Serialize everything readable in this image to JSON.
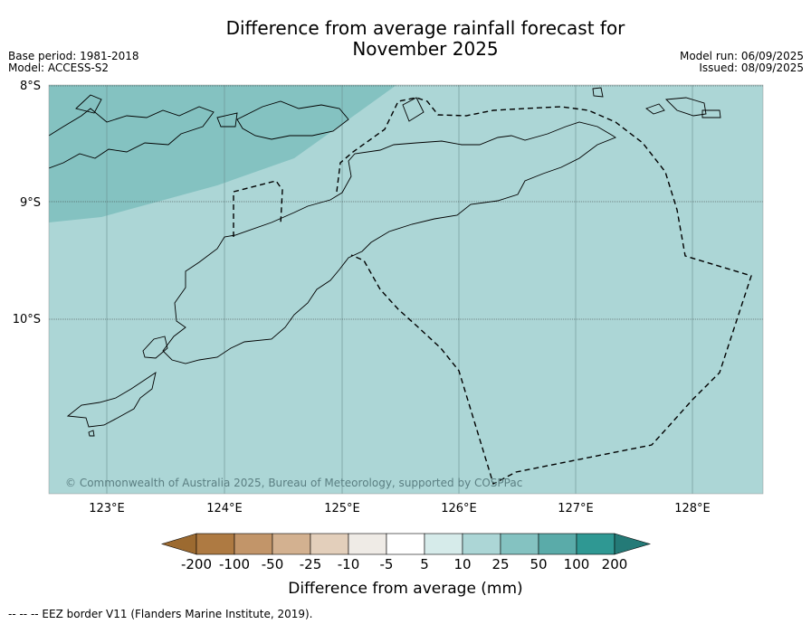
{
  "header": {
    "title": "Difference from average rainfall forecast for\nNovember 2025",
    "base_period": "Base period: 1981-2018",
    "model": "Model: ACCESS-S2",
    "model_run": "Model run: 06/09/2025",
    "issued": "Issued: 08/09/2025"
  },
  "map": {
    "lat_labels": [
      "8°S",
      "9°S",
      "10°S"
    ],
    "lon_labels": [
      "123°E",
      "124°E",
      "125°E",
      "126°E",
      "127°E",
      "128°E"
    ],
    "copyright": "© Commonwealth of Australia 2025, Bureau of Meteorology, supported by COSPPac",
    "colors": {
      "base": "#acd6d6",
      "upper": "#84c2c1",
      "land_outline": "#000000"
    }
  },
  "colorbar": {
    "title": "Difference from average (mm)",
    "labels": [
      "-200",
      "-100",
      "-50",
      "-25",
      "-10",
      "-5",
      "5",
      "10",
      "25",
      "50",
      "100",
      "200"
    ],
    "colors": [
      "#9c6a30",
      "#ae7a42",
      "#c29569",
      "#d3b190",
      "#e3cfbb",
      "#efebe6",
      "#ffffff",
      "#d6ebea",
      "#acd6d6",
      "#84c2c1",
      "#5aaba9",
      "#2f9893",
      "#247a77"
    ]
  },
  "footer": {
    "legend_note": "--  --  -- EEZ border V11 (Flanders Marine Institute, 2019)."
  }
}
